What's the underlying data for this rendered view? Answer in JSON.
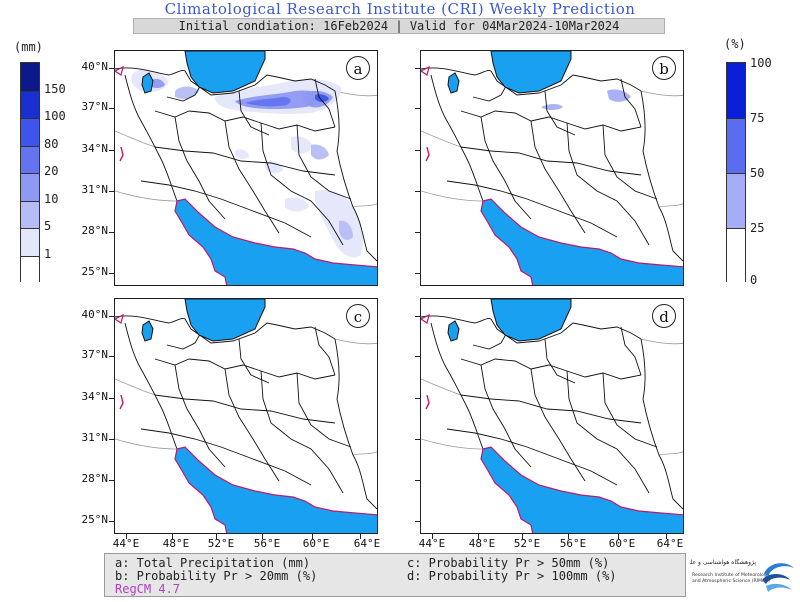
{
  "header": {
    "title": "Climatological Research Institute (CRI) Weekly Prediction",
    "subtitle": "Initial condiation: 16Feb2024 | Valid for 04Mar2024-10Mar2024"
  },
  "left_colorbar": {
    "unit": "(mm)",
    "labels": [
      "150",
      "100",
      "80",
      "20",
      "10",
      "5",
      "1"
    ],
    "colors": [
      "#0a1a8a",
      "#1a2fd0",
      "#3d55ea",
      "#6474f0",
      "#8d99f2",
      "#b6bdf6",
      "#e4e6fb",
      "#ffffff"
    ]
  },
  "right_colorbar": {
    "unit": "(%)",
    "labels": [
      "100",
      "75",
      "50",
      "25",
      "0"
    ],
    "colors": [
      "#0a1fd8",
      "#5a6cf0",
      "#a6adf6",
      "#ffffff"
    ]
  },
  "panels": [
    {
      "letter": "a"
    },
    {
      "letter": "b"
    },
    {
      "letter": "c"
    },
    {
      "letter": "d"
    }
  ],
  "axes": {
    "lat_labels": [
      "40°N",
      "37°N",
      "34°N",
      "31°N",
      "28°N",
      "25°N"
    ],
    "lon_labels": [
      "44°E",
      "48°E",
      "52°E",
      "56°E",
      "60°E",
      "64°E"
    ]
  },
  "colors": {
    "water": "#1aa0f0",
    "land_outline": "#111111",
    "coast": "#c0186a"
  },
  "legend": {
    "a": "a: Total Precipitation (mm)",
    "b": "b: Probability Pr > 20mm (%)",
    "c": "c: Probability Pr > 50mm (%)",
    "d": "d: Probability Pr > 100mm (%)",
    "model": "RegCM 4.7"
  },
  "logo": {
    "line1": "پژوهشگاه هواشناسی و علوم جو",
    "line2": "Research Institute of Meteorology",
    "line3": "and Atmospheric Science (RIMAS)"
  }
}
